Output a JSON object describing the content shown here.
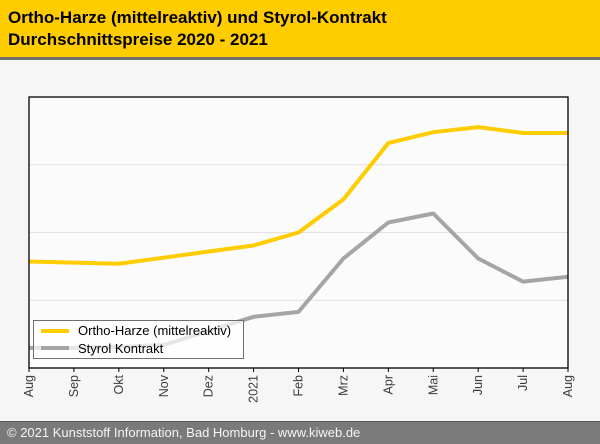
{
  "header": {
    "title_line1": "Ortho-Harze (mittelreaktiv) und Styrol-Kontrakt",
    "title_line2": "Durchschnittspreise 2020 - 2021",
    "background": "#ffcc00"
  },
  "footer": {
    "text": "© 2021 Kunststoff Information, Bad Homburg - www.kiweb.de",
    "background": "#7a7a7a"
  },
  "chart_data": {
    "type": "line",
    "title": "Ortho-Harze (mittelreaktiv) und Styrol-Kontrakt Durchschnittspreise 2020 - 2021",
    "x_labels": [
      "Aug",
      "Sep",
      "Okt",
      "Nov",
      "Dez",
      "2021",
      "Feb",
      "Mrz",
      "Apr",
      "Mai",
      "Jun",
      "Jul",
      "Aug"
    ],
    "x_label_rotation_deg": -90,
    "y_axis": {
      "tick_labels_shown": false,
      "inner_gridlines": 3,
      "gridline_color": "#e2e2e2"
    },
    "plot": {
      "border_color": "#000000",
      "background": "#fbfbfb"
    },
    "series": [
      {
        "name": "Ortho-Harze (mittelreaktiv)",
        "color": "#ffcc00",
        "values_pct_of_plot_height": [
          39.3,
          38.9,
          38.5,
          40.7,
          43.0,
          45.2,
          50.0,
          62.2,
          83.0,
          87.0,
          88.9,
          86.7,
          86.7
        ]
      },
      {
        "name": "Styrol Kontrakt",
        "color": "#a5a5a5",
        "values_pct_of_plot_height": [
          7.4,
          7.4,
          7.8,
          8.5,
          13.7,
          18.9,
          20.7,
          40.4,
          53.7,
          57.0,
          40.4,
          31.9,
          33.7
        ]
      }
    ],
    "legend": {
      "position": "inside-bottom-left",
      "items": [
        "Ortho-Harze (mittelreaktiv)",
        "Styrol Kontrakt"
      ]
    }
  }
}
